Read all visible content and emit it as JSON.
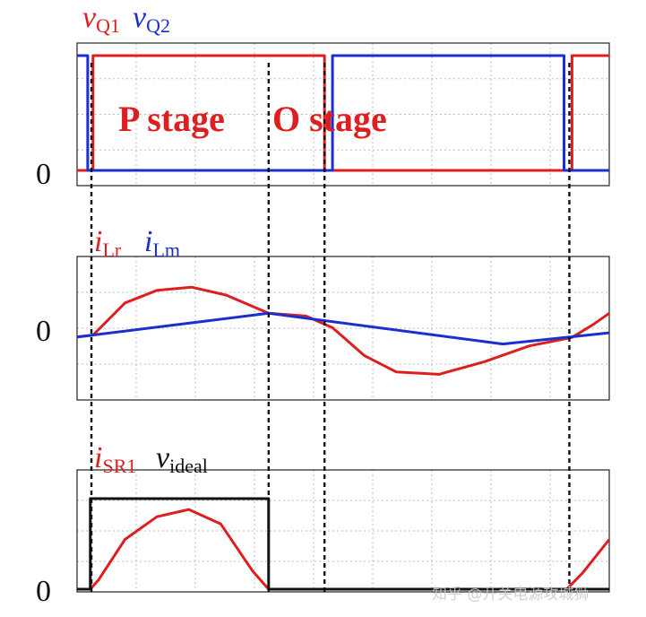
{
  "chart_data": [
    {
      "type": "line",
      "title": "",
      "legend": [
        {
          "label": "v",
          "sub": "Q1",
          "color": "#dd1f1f"
        },
        {
          "label": "v",
          "sub": "Q2",
          "color": "#1b2fd1"
        }
      ],
      "ylabel": "0",
      "annotations": [
        "P stage",
        "O stage"
      ],
      "grid": true,
      "series": [
        {
          "name": "vQ1",
          "color": "#dd1f1f",
          "x": [
            0,
            0.02,
            0.02,
            0.03,
            0.03,
            0.465,
            0.465,
            0.93,
            0.93,
            1.0
          ],
          "y": [
            0,
            0,
            0,
            0,
            1,
            1,
            0,
            0,
            1,
            1
          ]
        },
        {
          "name": "vQ2",
          "color": "#1b2fd1",
          "x": [
            0,
            0.02,
            0.02,
            0.48,
            0.48,
            0.915,
            0.915,
            1.0
          ],
          "y": [
            1,
            1,
            0,
            0,
            1,
            1,
            0,
            0
          ]
        }
      ]
    },
    {
      "type": "line",
      "title": "",
      "legend": [
        {
          "label": "i",
          "sub": "Lr",
          "color": "#dd1f1f"
        },
        {
          "label": "i",
          "sub": "Lm",
          "color": "#1b2fd1"
        }
      ],
      "ylabel": "0",
      "grid": true,
      "series": [
        {
          "name": "iLr",
          "color": "#dd1f1f",
          "x": [
            0.0,
            0.03,
            0.09,
            0.15,
            0.215,
            0.28,
            0.36,
            0.43,
            0.48,
            0.54,
            0.6,
            0.68,
            0.765,
            0.85,
            0.93,
            0.97,
            1.0
          ],
          "y": [
            -0.15,
            -0.11,
            0.58,
            0.85,
            0.92,
            0.75,
            0.36,
            0.3,
            0.05,
            -0.55,
            -0.9,
            -0.95,
            -0.68,
            -0.34,
            -0.16,
            0.12,
            0.36
          ]
        },
        {
          "name": "iLm",
          "color": "#1b2fd1",
          "x": [
            0.0,
            0.36,
            0.8,
            1.0
          ],
          "y": [
            -0.15,
            0.36,
            -0.3,
            -0.06
          ]
        }
      ]
    },
    {
      "type": "line",
      "title": "",
      "legend": [
        {
          "label": "i",
          "sub": "SR1",
          "color": "#dd1f1f"
        },
        {
          "label": "v",
          "sub": "ideal",
          "color": "#111111"
        }
      ],
      "ylabel": "0",
      "grid": true,
      "series": [
        {
          "name": "iSR1",
          "color": "#dd1f1f",
          "x": [
            0.0,
            0.025,
            0.04,
            0.09,
            0.15,
            0.21,
            0.27,
            0.33,
            0.36,
            0.92,
            0.95,
            1.0
          ],
          "y": [
            0,
            0,
            0.1,
            0.55,
            0.8,
            0.88,
            0.72,
            0.2,
            0,
            0,
            0.18,
            0.55
          ]
        },
        {
          "name": "videal",
          "color": "#111111",
          "x": [
            0.0,
            0.025,
            0.025,
            0.36,
            0.36,
            1.0
          ],
          "y": [
            0,
            0,
            1,
            1,
            0,
            0
          ]
        }
      ]
    }
  ],
  "watermark": "知乎 @开关电源攻城狮"
}
